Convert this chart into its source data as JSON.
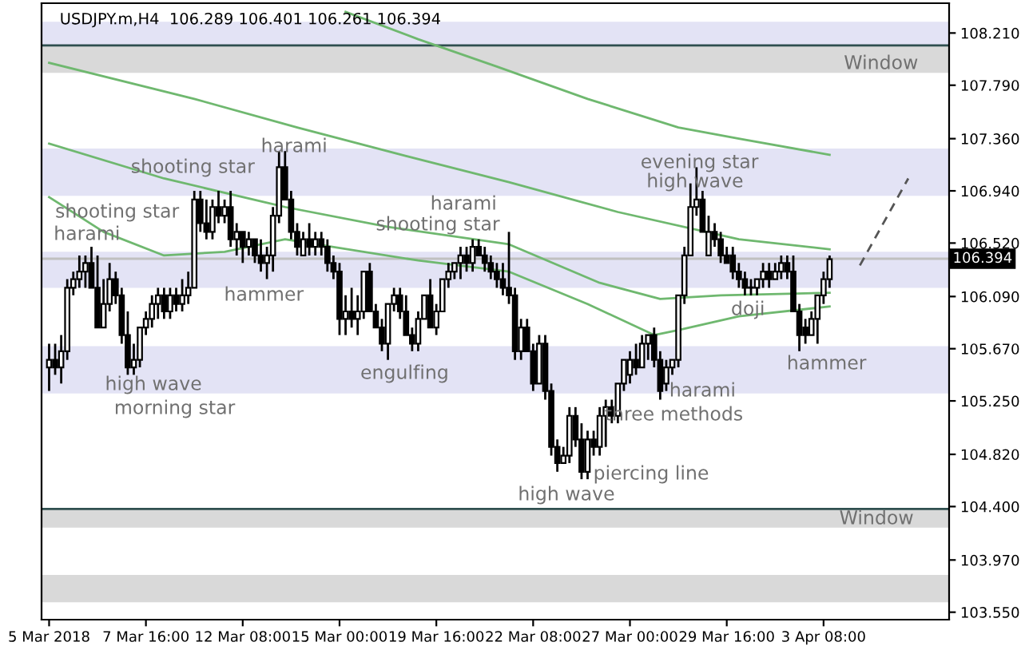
{
  "chart_data": {
    "type": "candlestick",
    "title": "USDJPY.m,H4  106.289 106.401 106.261 106.394",
    "categories": [
      "5 Mar 2018",
      null,
      null,
      null,
      null,
      null,
      null,
      null,
      null,
      null,
      null,
      null,
      null,
      null,
      null,
      null,
      "7 Mar 16:00",
      null,
      null,
      null,
      null,
      null,
      null,
      null,
      null,
      null,
      null,
      null,
      null,
      null,
      null,
      null,
      "12 Mar 08:00",
      null,
      null,
      null,
      null,
      null,
      null,
      null,
      null,
      null,
      null,
      null,
      null,
      null,
      null,
      null,
      "15 Mar 00:00",
      null,
      null,
      null,
      null,
      null,
      null,
      null,
      null,
      null,
      null,
      null,
      null,
      null,
      null,
      null,
      "19 Mar 16:00",
      null,
      null,
      null,
      null,
      null,
      null,
      null,
      null,
      null,
      null,
      null,
      null,
      null,
      null,
      null,
      "22 Mar 08:00",
      null,
      null,
      null,
      null,
      null,
      null,
      null,
      null,
      null,
      null,
      null,
      null,
      null,
      null,
      null,
      "27 Mar 00:00",
      null,
      null,
      null,
      null,
      null,
      null,
      null,
      null,
      null,
      null,
      null,
      null,
      null,
      null,
      null,
      "29 Mar 16:00",
      null,
      null,
      null,
      null,
      null,
      null,
      null,
      null,
      null,
      null,
      null,
      null,
      null,
      null,
      null,
      "3 Apr 08:00",
      null,
      null,
      null,
      null,
      null,
      null,
      null,
      null,
      null,
      null,
      null,
      null,
      null,
      null,
      null,
      null,
      null,
      null,
      null,
      null
    ],
    "ohlc": [
      [
        105.52,
        105.71,
        105.33,
        105.58
      ],
      [
        105.58,
        105.71,
        105.46,
        105.52
      ],
      [
        105.52,
        105.78,
        105.39,
        105.65
      ],
      [
        105.65,
        106.23,
        105.58,
        106.16
      ],
      [
        106.16,
        106.29,
        106.1,
        106.23
      ],
      [
        106.23,
        106.42,
        106.16,
        106.29
      ],
      [
        106.29,
        106.42,
        106.16,
        106.36
      ],
      [
        106.36,
        106.49,
        106.16,
        106.16
      ],
      [
        106.16,
        106.42,
        105.84,
        105.84
      ],
      [
        105.84,
        106.23,
        105.84,
        106.03
      ],
      [
        106.03,
        106.36,
        105.97,
        106.23
      ],
      [
        106.23,
        106.29,
        106.03,
        106.1
      ],
      [
        106.1,
        106.16,
        105.71,
        105.78
      ],
      [
        105.78,
        105.97,
        105.46,
        105.52
      ],
      [
        105.52,
        105.71,
        105.46,
        105.58
      ],
      [
        105.58,
        105.84,
        105.52,
        105.84
      ],
      [
        105.84,
        105.97,
        105.78,
        105.91
      ],
      [
        105.91,
        106.1,
        105.84,
        106.03
      ],
      [
        106.03,
        106.16,
        105.91,
        106.1
      ],
      [
        106.1,
        106.16,
        105.91,
        105.97
      ],
      [
        105.97,
        106.16,
        105.91,
        106.1
      ],
      [
        106.1,
        106.16,
        105.97,
        106.03
      ],
      [
        106.03,
        106.23,
        105.97,
        106.1
      ],
      [
        106.1,
        106.29,
        106.03,
        106.16
      ],
      [
        106.16,
        106.94,
        106.16,
        106.87
      ],
      [
        106.87,
        106.94,
        106.61,
        106.68
      ],
      [
        106.68,
        106.87,
        106.55,
        106.61
      ],
      [
        106.61,
        106.87,
        106.55,
        106.81
      ],
      [
        106.81,
        106.94,
        106.68,
        106.74
      ],
      [
        106.74,
        106.87,
        106.68,
        106.81
      ],
      [
        106.81,
        106.94,
        106.49,
        106.55
      ],
      [
        106.55,
        106.68,
        106.42,
        106.61
      ],
      [
        106.61,
        106.61,
        106.36,
        106.49
      ],
      [
        106.49,
        106.61,
        106.42,
        106.55
      ],
      [
        106.55,
        106.55,
        106.36,
        106.42
      ],
      [
        106.42,
        106.55,
        106.29,
        106.36
      ],
      [
        106.36,
        106.49,
        106.23,
        106.42
      ],
      [
        106.42,
        106.81,
        106.29,
        106.74
      ],
      [
        106.74,
        107.26,
        106.68,
        107.13
      ],
      [
        107.13,
        107.26,
        106.87,
        106.87
      ],
      [
        106.87,
        106.94,
        106.55,
        106.61
      ],
      [
        106.61,
        106.68,
        106.42,
        106.49
      ],
      [
        106.42,
        106.61,
        106.42,
        106.55
      ],
      [
        106.55,
        106.68,
        106.42,
        106.49
      ],
      [
        106.49,
        106.61,
        106.42,
        106.55
      ],
      [
        106.55,
        106.61,
        106.42,
        106.49
      ],
      [
        106.49,
        106.55,
        106.29,
        106.36
      ],
      [
        106.36,
        106.42,
        106.23,
        106.29
      ],
      [
        106.29,
        106.36,
        105.78,
        105.91
      ],
      [
        105.91,
        106.1,
        105.78,
        105.97
      ],
      [
        105.97,
        106.16,
        105.84,
        105.91
      ],
      [
        105.91,
        106.1,
        105.78,
        105.97
      ],
      [
        105.97,
        106.29,
        105.91,
        106.29
      ],
      [
        106.29,
        106.36,
        105.97,
        105.97
      ],
      [
        105.97,
        106.03,
        105.84,
        105.84
      ],
      [
        105.84,
        105.91,
        105.65,
        105.71
      ],
      [
        105.71,
        106.03,
        105.58,
        106.03
      ],
      [
        106.03,
        106.16,
        105.97,
        106.1
      ],
      [
        106.1,
        106.16,
        105.91,
        105.97
      ],
      [
        105.97,
        106.1,
        105.78,
        105.78
      ],
      [
        105.78,
        105.84,
        105.65,
        105.71
      ],
      [
        105.71,
        105.97,
        105.65,
        105.91
      ],
      [
        105.91,
        106.1,
        105.91,
        106.1
      ],
      [
        106.1,
        106.23,
        105.84,
        105.84
      ],
      [
        105.84,
        106.03,
        105.78,
        105.97
      ],
      [
        105.97,
        106.23,
        105.97,
        106.23
      ],
      [
        106.23,
        106.36,
        106.16,
        106.29
      ],
      [
        106.29,
        106.36,
        106.23,
        106.36
      ],
      [
        106.36,
        106.49,
        106.23,
        106.42
      ],
      [
        106.42,
        106.49,
        106.29,
        106.36
      ],
      [
        106.36,
        106.55,
        106.29,
        106.49
      ],
      [
        106.49,
        106.55,
        106.42,
        106.42
      ],
      [
        106.42,
        106.49,
        106.29,
        106.36
      ],
      [
        106.36,
        106.42,
        106.23,
        106.29
      ],
      [
        106.29,
        106.36,
        106.16,
        106.23
      ],
      [
        106.23,
        106.36,
        106.1,
        106.16
      ],
      [
        106.16,
        106.61,
        106.03,
        106.1
      ],
      [
        106.1,
        106.16,
        105.58,
        105.65
      ],
      [
        105.65,
        105.91,
        105.58,
        105.84
      ],
      [
        105.84,
        105.91,
        105.65,
        105.65
      ],
      [
        105.65,
        105.71,
        105.33,
        105.39
      ],
      [
        105.39,
        105.78,
        105.39,
        105.71
      ],
      [
        105.71,
        105.78,
        105.26,
        105.33
      ],
      [
        105.33,
        105.39,
        104.81,
        104.88
      ],
      [
        104.88,
        104.94,
        104.68,
        104.75
      ],
      [
        104.75,
        104.88,
        104.75,
        104.81
      ],
      [
        104.81,
        105.2,
        104.75,
        105.13
      ],
      [
        105.13,
        105.2,
        104.88,
        104.94
      ],
      [
        104.94,
        105.07,
        104.62,
        104.68
      ],
      [
        104.68,
        105.01,
        104.62,
        104.94
      ],
      [
        104.94,
        105.01,
        104.81,
        104.88
      ],
      [
        104.88,
        105.2,
        104.81,
        105.13
      ],
      [
        105.13,
        105.26,
        104.88,
        105.2
      ],
      [
        105.2,
        105.26,
        105.07,
        105.13
      ],
      [
        105.13,
        105.39,
        105.07,
        105.39
      ],
      [
        105.39,
        105.58,
        105.33,
        105.58
      ],
      [
        105.46,
        105.65,
        105.39,
        105.58
      ],
      [
        105.58,
        105.71,
        105.46,
        105.52
      ],
      [
        105.52,
        105.78,
        105.52,
        105.71
      ],
      [
        105.71,
        105.78,
        105.58,
        105.78
      ],
      [
        105.78,
        105.84,
        105.52,
        105.58
      ],
      [
        105.58,
        105.65,
        105.26,
        105.33
      ],
      [
        105.39,
        105.58,
        105.33,
        105.52
      ],
      [
        105.52,
        105.58,
        105.46,
        105.58
      ],
      [
        105.58,
        106.1,
        105.52,
        106.1
      ],
      [
        106.1,
        106.49,
        106.03,
        106.42
      ],
      [
        106.42,
        107.0,
        106.42,
        106.81
      ],
      [
        106.81,
        107.13,
        106.74,
        106.87
      ],
      [
        106.87,
        106.94,
        106.61,
        106.61
      ],
      [
        106.42,
        106.74,
        106.42,
        106.61
      ],
      [
        106.61,
        106.68,
        106.49,
        106.55
      ],
      [
        106.55,
        106.61,
        106.36,
        106.42
      ],
      [
        106.42,
        106.49,
        106.36,
        106.36
      ],
      [
        106.42,
        106.49,
        106.23,
        106.29
      ],
      [
        106.29,
        106.36,
        106.16,
        106.23
      ],
      [
        106.23,
        106.29,
        106.1,
        106.16
      ],
      [
        106.16,
        106.23,
        106.1,
        106.16
      ],
      [
        106.16,
        106.23,
        106.1,
        106.23
      ],
      [
        106.23,
        106.36,
        106.16,
        106.29
      ],
      [
        106.29,
        106.36,
        106.16,
        106.23
      ],
      [
        106.23,
        106.36,
        106.23,
        106.29
      ],
      [
        106.29,
        106.42,
        106.23,
        106.36
      ],
      [
        106.36,
        106.42,
        106.23,
        106.29
      ],
      [
        106.29,
        106.42,
        105.97,
        105.97
      ],
      [
        105.97,
        106.03,
        105.65,
        105.78
      ],
      [
        105.84,
        105.91,
        105.71,
        105.78
      ],
      [
        105.78,
        105.97,
        105.78,
        105.91
      ],
      [
        105.91,
        106.1,
        105.71,
        106.1
      ],
      [
        106.1,
        106.29,
        106.03,
        106.23
      ],
      [
        106.23,
        106.42,
        106.16,
        106.39
      ],
      null,
      null,
      null,
      null,
      null,
      null,
      null,
      null,
      null,
      null,
      null,
      null,
      null,
      null,
      null,
      null,
      null,
      null,
      null
    ],
    "series": [
      {
        "type": "line",
        "color": "#6fb86f",
        "values": [
          106.89,
          null,
          null,
          null,
          null,
          null,
          null,
          null,
          null,
          106.61,
          null,
          null,
          null,
          null,
          null,
          null,
          null,
          null,
          null,
          106.42,
          null,
          null,
          null,
          null,
          null,
          null,
          null,
          null,
          null,
          106.45,
          null,
          null,
          null,
          null,
          null,
          null,
          null,
          null,
          null,
          106.55,
          null,
          null,
          null,
          null,
          null,
          null,
          null,
          null,
          null,
          null,
          null,
          null,
          null,
          null,
          null,
          null,
          null,
          null,
          null,
          null,
          null,
          106.38,
          null,
          null,
          null,
          null,
          null,
          null,
          null,
          null,
          null,
          null,
          null,
          null,
          null,
          null,
          106.29,
          null,
          null,
          null,
          null,
          null,
          null,
          null,
          null,
          null,
          null,
          null,
          null,
          106.03,
          null,
          null,
          null,
          null,
          null,
          null,
          null,
          null,
          null,
          null,
          105.78,
          null,
          null,
          null,
          105.82,
          null,
          null,
          null,
          null,
          null,
          null,
          null,
          null,
          null,
          105.93,
          null,
          null,
          null,
          null,
          null,
          null,
          null,
          null,
          null,
          null,
          null,
          null,
          null,
          null,
          106.01,
          null,
          null,
          null,
          null,
          null,
          null,
          null,
          null,
          null,
          null,
          null,
          null,
          null,
          null,
          null,
          null,
          null,
          null,
          null
        ]
      },
      {
        "type": "line",
        "color": "#6fb86f",
        "values": [
          107.32,
          null,
          null,
          null,
          null,
          null,
          null,
          null,
          null,
          null,
          null,
          null,
          null,
          null,
          null,
          null,
          null,
          null,
          null,
          107.04,
          null,
          null,
          null,
          null,
          null,
          null,
          null,
          null,
          null,
          null,
          null,
          null,
          null,
          null,
          null,
          null,
          null,
          null,
          null,
          106.81,
          null,
          null,
          null,
          null,
          null,
          null,
          null,
          null,
          null,
          null,
          null,
          null,
          null,
          null,
          null,
          null,
          106.65,
          null,
          null,
          null,
          null,
          null,
          null,
          null,
          null,
          null,
          null,
          null,
          null,
          null,
          null,
          null,
          null,
          null,
          null,
          null,
          106.51,
          null,
          null,
          null,
          null,
          null,
          null,
          null,
          null,
          null,
          null,
          null,
          null,
          null,
          null,
          106.2,
          null,
          null,
          null,
          null,
          null,
          null,
          null,
          null,
          null,
          106.07,
          null,
          null,
          null,
          null,
          null,
          null,
          null,
          null,
          null,
          106.1,
          null,
          null,
          null,
          null,
          null,
          null,
          null,
          null,
          null,
          null,
          null,
          null,
          null,
          null,
          null,
          null,
          null,
          106.12,
          null,
          null,
          null,
          null,
          null,
          null,
          null,
          null,
          null,
          null,
          null,
          null,
          null,
          null,
          null,
          null,
          null,
          null,
          null
        ]
      },
      {
        "type": "line",
        "color": "#6fb86f",
        "values": [
          107.97,
          null,
          null,
          null,
          null,
          null,
          null,
          null,
          null,
          null,
          null,
          null,
          null,
          null,
          null,
          null,
          null,
          null,
          null,
          null,
          null,
          null,
          null,
          null,
          107.68,
          null,
          null,
          null,
          null,
          null,
          null,
          null,
          null,
          null,
          null,
          null,
          null,
          null,
          null,
          null,
          null,
          107.45,
          null,
          null,
          null,
          null,
          null,
          null,
          null,
          null,
          null,
          null,
          null,
          null,
          null,
          null,
          null,
          null,
          null,
          107.22,
          null,
          null,
          null,
          null,
          null,
          null,
          null,
          null,
          null,
          null,
          null,
          null,
          null,
          null,
          null,
          null,
          107.01,
          null,
          null,
          null,
          null,
          null,
          null,
          null,
          null,
          null,
          null,
          null,
          null,
          null,
          null,
          null,
          null,
          null,
          106.77,
          null,
          null,
          null,
          null,
          null,
          null,
          null,
          null,
          null,
          null,
          null,
          null,
          null,
          null,
          null,
          null,
          null,
          null,
          null,
          106.55,
          null,
          null,
          null,
          null,
          null,
          null,
          null,
          null,
          null,
          null,
          null,
          null,
          null,
          null,
          106.47,
          null,
          null,
          null,
          null,
          null,
          null,
          null,
          null,
          null,
          null,
          null,
          null,
          null,
          null,
          null,
          null,
          null,
          null,
          null
        ]
      },
      {
        "type": "line",
        "color": "#6fb86f",
        "values": [
          null,
          null,
          null,
          null,
          null,
          null,
          null,
          null,
          null,
          null,
          null,
          null,
          null,
          null,
          null,
          null,
          null,
          null,
          null,
          null,
          null,
          null,
          null,
          null,
          null,
          null,
          null,
          null,
          null,
          null,
          null,
          null,
          null,
          null,
          null,
          null,
          null,
          null,
          null,
          null,
          null,
          null,
          null,
          null,
          null,
          null,
          null,
          null,
          null,
          108.38,
          null,
          null,
          null,
          null,
          null,
          null,
          null,
          null,
          null,
          null,
          null,
          108.16,
          null,
          null,
          null,
          null,
          null,
          null,
          null,
          null,
          null,
          null,
          null,
          null,
          107.94,
          null,
          null,
          null,
          null,
          null,
          null,
          null,
          null,
          null,
          null,
          null,
          null,
          null,
          null,
          107.68,
          null,
          null,
          null,
          null,
          null,
          null,
          null,
          null,
          null,
          null,
          null,
          null,
          null,
          null,
          107.45,
          null,
          null,
          null,
          null,
          null,
          null,
          null,
          null,
          null,
          107.36,
          null,
          null,
          null,
          null,
          null,
          null,
          null,
          null,
          null,
          null,
          null,
          null,
          null,
          null,
          107.23,
          null,
          null,
          null,
          null,
          null,
          null,
          null,
          null,
          null,
          null,
          null,
          null,
          null,
          null,
          null,
          null,
          null,
          null,
          null
        ]
      },
      {
        "type": "line",
        "color": "#555555",
        "line_style": "dashed",
        "values": [
          null,
          null,
          null,
          null,
          null,
          null,
          null,
          null,
          null,
          null,
          null,
          null,
          null,
          null,
          null,
          null,
          null,
          null,
          null,
          null,
          null,
          null,
          null,
          null,
          null,
          null,
          null,
          null,
          null,
          null,
          null,
          null,
          null,
          null,
          null,
          null,
          null,
          null,
          null,
          null,
          null,
          null,
          null,
          null,
          null,
          null,
          null,
          null,
          null,
          null,
          null,
          null,
          null,
          null,
          null,
          null,
          null,
          null,
          null,
          null,
          null,
          null,
          null,
          null,
          null,
          null,
          null,
          null,
          null,
          null,
          null,
          null,
          null,
          null,
          null,
          null,
          null,
          null,
          null,
          null,
          null,
          null,
          null,
          null,
          null,
          null,
          null,
          null,
          null,
          null,
          null,
          null,
          null,
          null,
          null,
          null,
          null,
          null,
          null,
          null,
          null,
          null,
          null,
          null,
          null,
          null,
          null,
          null,
          null,
          null,
          null,
          null,
          null,
          null,
          null,
          null,
          null,
          null,
          null,
          null,
          null,
          null,
          null,
          null,
          null,
          null,
          null,
          null,
          null,
          null,
          null,
          null,
          null,
          null,
          106.34,
          null,
          null,
          null,
          null,
          null,
          null,
          null,
          107.04,
          null,
          null,
          null,
          null,
          null,
          null
        ]
      }
    ],
    "bands": [
      {
        "axis": "y",
        "from": 108.11,
        "to": 108.3,
        "color": "#e3e3f5"
      },
      {
        "axis": "y",
        "from": 107.89,
        "to": 108.11,
        "color": "#d9d9d9"
      },
      {
        "axis": "y",
        "from": 106.9,
        "to": 107.28,
        "color": "#e3e3f5"
      },
      {
        "axis": "y",
        "from": 106.16,
        "to": 106.45,
        "color": "#e3e3f5"
      },
      {
        "axis": "y",
        "from": 105.31,
        "to": 105.69,
        "color": "#e3e3f5"
      },
      {
        "axis": "y",
        "from": 104.23,
        "to": 104.38,
        "color": "#d9d9d9"
      },
      {
        "axis": "y",
        "from": 103.63,
        "to": 103.85,
        "color": "#d9d9d9"
      }
    ],
    "ref_lines": [
      {
        "axis": "y",
        "value": 108.11,
        "color": "#2f4f4f"
      },
      {
        "axis": "y",
        "value": 104.38,
        "color": "#2f4f4f"
      },
      {
        "axis": "y",
        "value": 106.394,
        "label": "106.394",
        "color": "#c0c0c0"
      }
    ],
    "annotations": [
      "shooting star",
      "shooting star",
      "harami",
      "harami",
      "hammer",
      "harami",
      "shooting star",
      "engulfing",
      "high wave",
      "morning star",
      "high wave",
      "piercing line",
      "three methods",
      "harami",
      "evening star",
      "high wave",
      "doji",
      "hammer",
      "Window",
      "Window"
    ],
    "ylim": [
      103.49,
      108.45
    ],
    "yticks": [
      {
        "value": 103.55,
        "label": "103.550"
      },
      {
        "value": 103.97,
        "label": "103.970"
      },
      {
        "value": 104.4,
        "label": "104.400"
      },
      {
        "value": 104.82,
        "label": "104.820"
      },
      {
        "value": 105.25,
        "label": "105.250"
      },
      {
        "value": 105.67,
        "label": "105.670"
      },
      {
        "value": 106.09,
        "label": "106.090"
      },
      {
        "value": 106.52,
        "label": "106.520"
      },
      {
        "value": 106.94,
        "label": "106.940"
      },
      {
        "value": 107.36,
        "label": "107.360"
      },
      {
        "value": 107.79,
        "label": "107.790"
      },
      {
        "value": 108.21,
        "label": "108.210"
      }
    ],
    "grid": false
  }
}
